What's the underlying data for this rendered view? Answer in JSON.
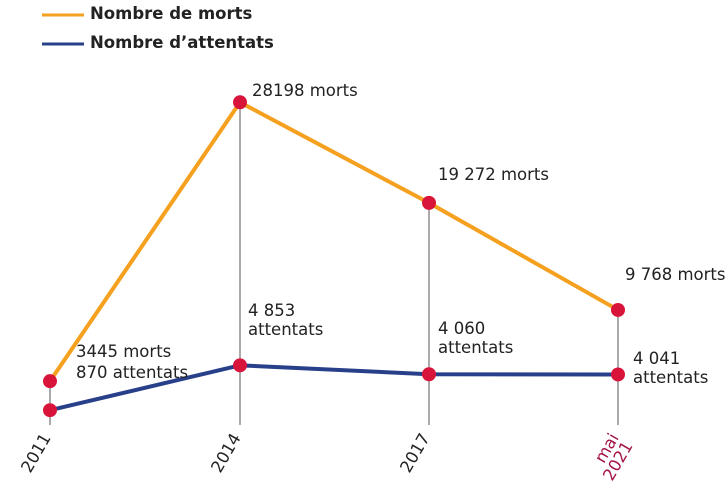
{
  "chart_data": {
    "type": "line",
    "categories": [
      "2011",
      "2014",
      "2017",
      "mai\n2021"
    ],
    "highlight_category": 3,
    "highlight_color": "#a3144a",
    "marker_color": "#d9143a",
    "guide_color": "#555555",
    "ylim": [
      0,
      30000
    ],
    "series": [
      {
        "name": "Nombre de morts",
        "color": "#f5a01e",
        "values": [
          3445,
          28198,
          19272,
          9768
        ],
        "value_labels": [
          "3445 morts",
          "28198 morts",
          "19 272 morts",
          "9 768 morts"
        ]
      },
      {
        "name": "Nombre d’attentats",
        "color": "#283f8a",
        "values": [
          870,
          4853,
          4060,
          4041
        ],
        "value_labels": [
          "870 attentats",
          "4 853\nattentats",
          "4 060\nattentats",
          "4 041\nattentats"
        ]
      }
    ]
  }
}
